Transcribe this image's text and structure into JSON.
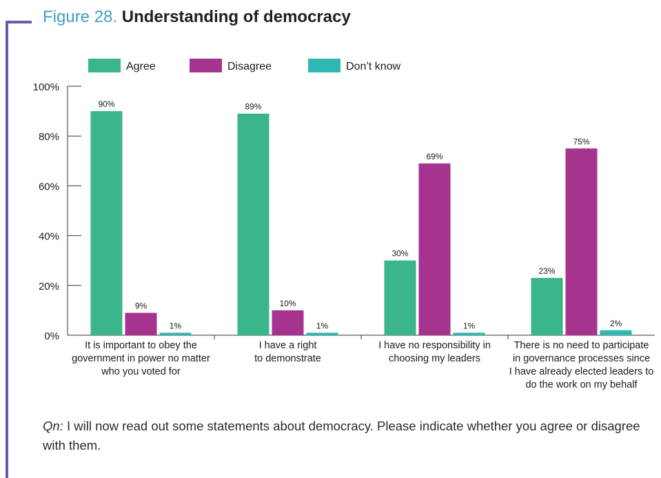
{
  "figure": {
    "number": "Figure 28.",
    "title": "Understanding of democracy"
  },
  "question": {
    "label": "Qn:",
    "text": " I will now read out some statements about democracy. Please indicate whether you agree or disagree with them."
  },
  "chart_data": {
    "type": "bar",
    "title": "",
    "xlabel": "",
    "ylabel": "",
    "ylim": [
      0,
      100
    ],
    "yticks": [
      "0%",
      "20%",
      "40%",
      "60%",
      "80%",
      "100%"
    ],
    "grid": false,
    "legend_position": "top",
    "categories": [
      "It is important to obey the government in power no matter who you voted for",
      "I have a right to demonstrate",
      "I have no responsibility in choosing my leaders",
      "There is no need to participate in governance processes since I have already elected leaders to do the work on my behalf"
    ],
    "category_lines": [
      [
        "It is important to obey the",
        "government in power no matter",
        "who you voted for"
      ],
      [
        "I have a right",
        "to demonstrate"
      ],
      [
        "I have no responsibility in",
        "choosing my leaders"
      ],
      [
        "There is no need to participate",
        "in governance processes since",
        "I have already elected leaders to",
        "do the work on my behalf"
      ]
    ],
    "series": [
      {
        "name": "Agree",
        "color": "#3bb58a",
        "values": [
          90,
          89,
          30,
          23
        ],
        "labels": [
          "90%",
          "89%",
          "30%",
          "23%"
        ]
      },
      {
        "name": "Disagree",
        "color": "#a6348f",
        "values": [
          9,
          10,
          69,
          75
        ],
        "labels": [
          "9%",
          "10%",
          "69%",
          "75%"
        ]
      },
      {
        "name": "Don’t know",
        "color": "#2fb7b2",
        "values": [
          1,
          1,
          1,
          2
        ],
        "labels": [
          "1%",
          "1%",
          "1%",
          "2%"
        ]
      }
    ]
  }
}
